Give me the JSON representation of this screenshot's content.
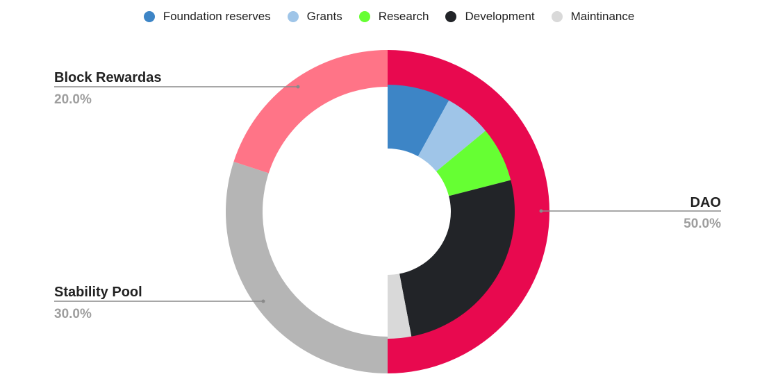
{
  "chart_data": {
    "type": "pie",
    "variant": "nested-donut",
    "title": "",
    "legend_position": "top-center",
    "outer": {
      "slices": [
        {
          "name": "DAO",
          "value": 50.0,
          "label": "50.0%",
          "color": "#e8094f"
        },
        {
          "name": "Stability Pool",
          "value": 30.0,
          "label": "30.0%",
          "color": "#b5b5b5"
        },
        {
          "name": "Block Rewardas",
          "value": 20.0,
          "label": "20.0%",
          "color": "#ff7487"
        }
      ]
    },
    "inner": {
      "slices": [
        {
          "name": "Foundation reserves",
          "value": 8.0,
          "color": "#3d85c6"
        },
        {
          "name": "Grants",
          "value": 6.0,
          "color": "#9fc5e8"
        },
        {
          "name": "Research",
          "value": 7.0,
          "color": "#66ff33"
        },
        {
          "name": "Development",
          "value": 26.0,
          "color": "#222428"
        },
        {
          "name": "Maintinance",
          "value": 3.0,
          "color": "#d9d9d9"
        }
      ]
    },
    "legend": [
      {
        "name": "Foundation reserves",
        "color": "#3d85c6"
      },
      {
        "name": "Grants",
        "color": "#9fc5e8"
      },
      {
        "name": "Research",
        "color": "#66ff33"
      },
      {
        "name": "Development",
        "color": "#222428"
      },
      {
        "name": "Maintinance",
        "color": "#d9d9d9"
      }
    ]
  }
}
